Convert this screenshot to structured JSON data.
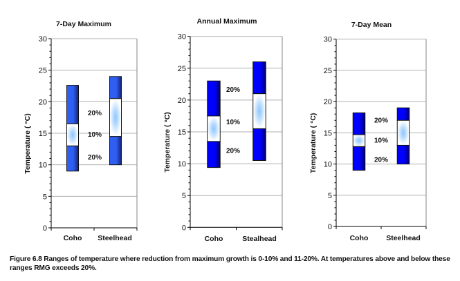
{
  "chart_data": [
    {
      "type": "bar",
      "subtype": "floating-range",
      "title": "7-Day Maximum",
      "xlabel": "",
      "ylabel": "Temperature (  °C)",
      "ylim": [
        0,
        30
      ],
      "yticks": [
        "0",
        "5",
        "10",
        "15",
        "20",
        "25",
        "30"
      ],
      "grid": true,
      "categories": [
        "Coho",
        "Steelhead"
      ],
      "bar_color_light": "#2f5ff0",
      "bar_color_dark": "#13237a",
      "ranges": [
        {
          "category": "Coho",
          "rmg20_low": 9,
          "rmg10_low": 13,
          "rmg10_high": 16.5,
          "rmg20_high": 22.6
        },
        {
          "category": "Steelhead",
          "rmg20_low": 10,
          "rmg10_low": 14.5,
          "rmg10_high": 20.5,
          "rmg20_high": 24
        }
      ],
      "annotations": [
        "20%",
        "10%",
        "20%"
      ]
    },
    {
      "type": "bar",
      "subtype": "floating-range",
      "title": "Annual Maximum",
      "xlabel": "",
      "ylabel": "Temperature (  °C)",
      "ylim": [
        0,
        30
      ],
      "yticks": [
        "0",
        "5",
        "10",
        "15",
        "20",
        "25",
        "30"
      ],
      "grid": true,
      "categories": [
        "Coho",
        "Stealhead"
      ],
      "bar_color_light": "#0000ff",
      "bar_color_dark": "#000070",
      "ranges": [
        {
          "category": "Coho",
          "rmg20_low": 9.4,
          "rmg10_low": 13.5,
          "rmg10_high": 17.5,
          "rmg20_high": 23
        },
        {
          "category": "Stealhead",
          "rmg20_low": 10.5,
          "rmg10_low": 15.5,
          "rmg10_high": 21,
          "rmg20_high": 26
        }
      ],
      "annotations": [
        "20%",
        "10%",
        "20%"
      ]
    },
    {
      "type": "bar",
      "subtype": "floating-range",
      "title": "7-Day Mean",
      "xlabel": "",
      "ylabel": "Temperature (  °C)",
      "ylim": [
        0,
        30
      ],
      "yticks": [
        "0",
        "5",
        "10",
        "15",
        "20",
        "25",
        "30"
      ],
      "grid": true,
      "categories": [
        "Coho",
        "Steelhead"
      ],
      "bar_color_light": "#0000ff",
      "bar_color_dark": "#000070",
      "ranges": [
        {
          "category": "Coho",
          "rmg20_low": 9,
          "rmg10_low": 12.8,
          "rmg10_high": 14.7,
          "rmg20_high": 18.2
        },
        {
          "category": "Steelhead",
          "rmg20_low": 10,
          "rmg10_low": 13,
          "rmg10_high": 17,
          "rmg20_high": 19
        }
      ],
      "annotations": [
        "20%",
        "10%",
        "20%"
      ]
    }
  ],
  "caption": "Figure 6.8  Ranges of temperature where reduction from maximum growth is 0-10% and 11-20%.  At temperatures above and below these ranges RMG exceeds 20%."
}
